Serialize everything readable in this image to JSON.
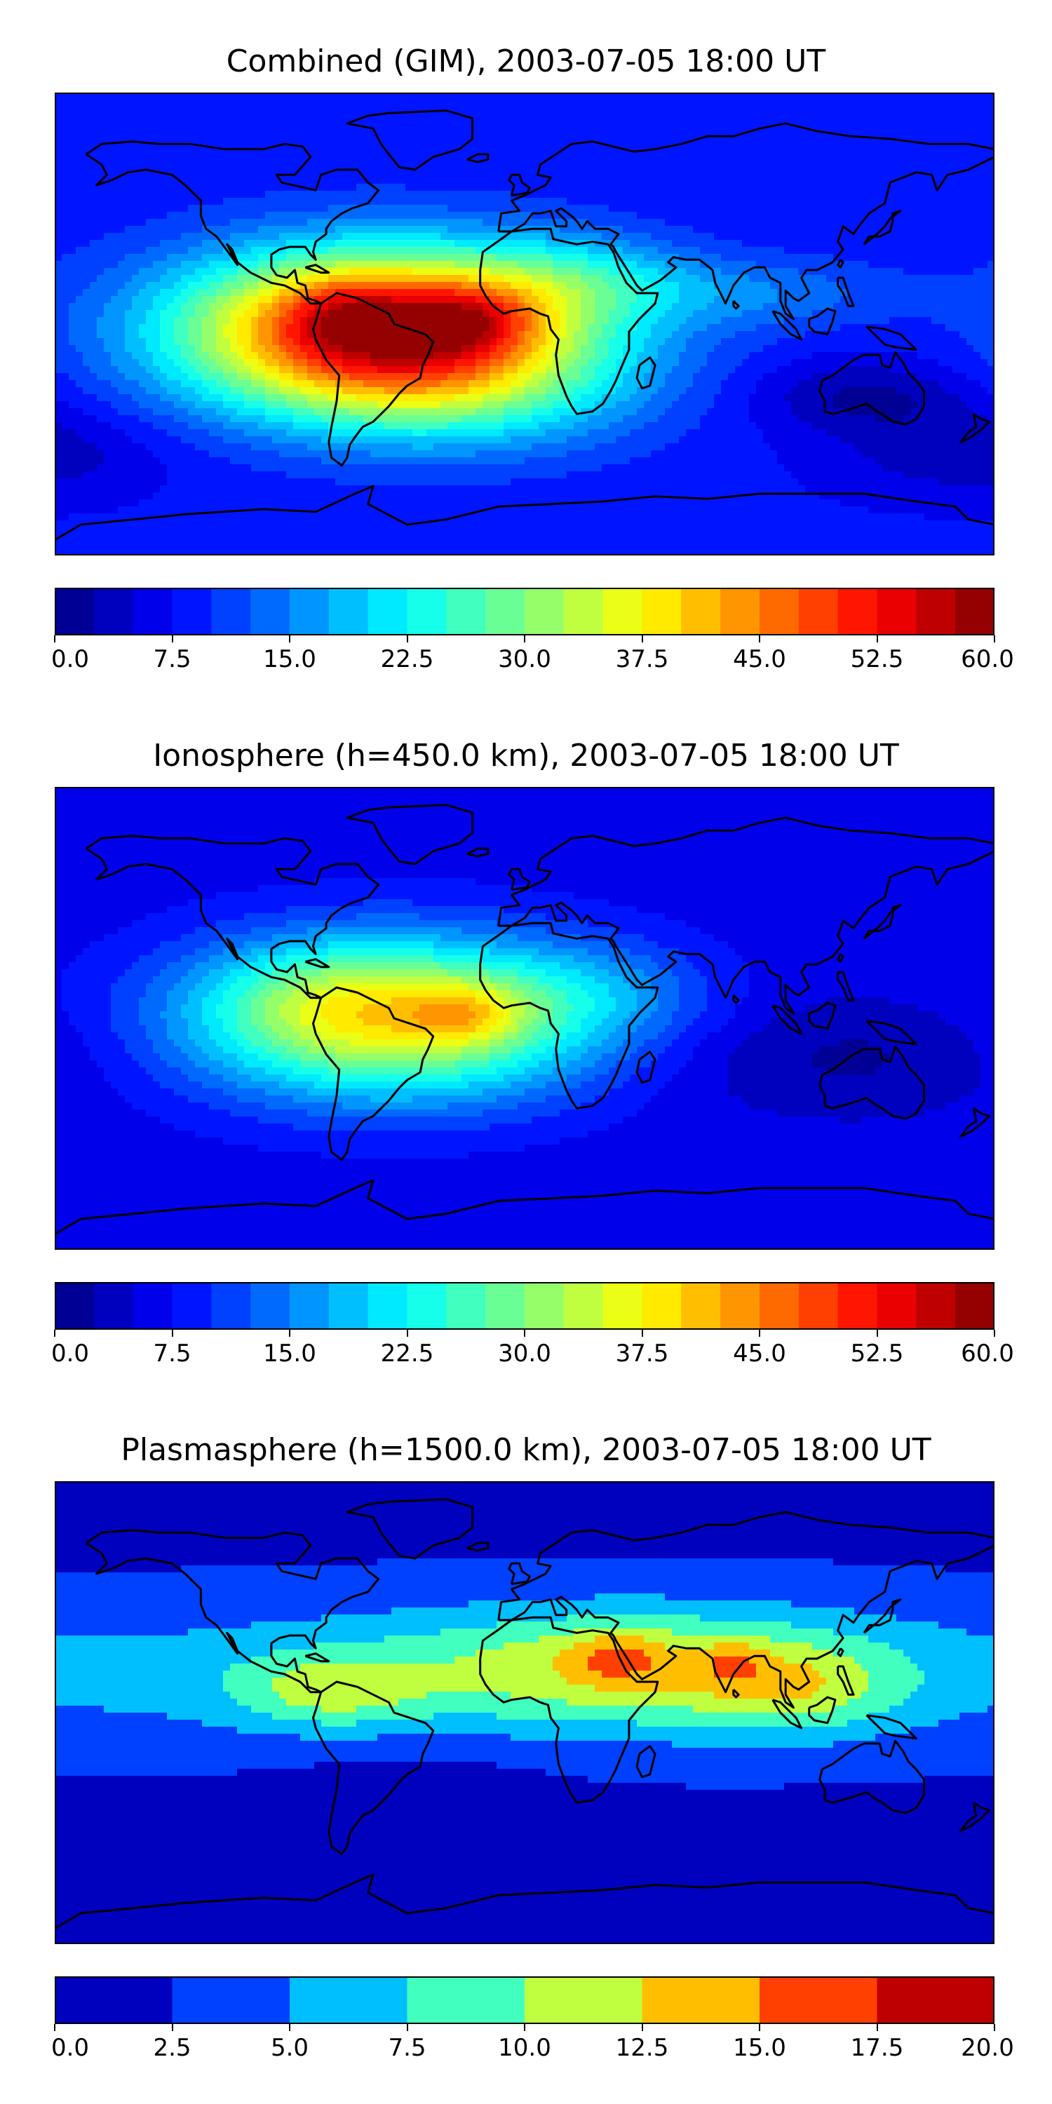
{
  "panels": [
    {
      "title": "Combined (GIM), 2003-07-05 18:00 UT",
      "colorbar": {
        "min": 0,
        "max": 60,
        "levels": 24,
        "ticks": [
          "0.0",
          "7.5",
          "15.0",
          "22.5",
          "30.0",
          "37.5",
          "45.0",
          "52.5",
          "60.0"
        ]
      },
      "field": {
        "background": 8,
        "blobs": [
          {
            "lon": -55,
            "lat": -2,
            "value": 47,
            "sx": 55,
            "sy": 22
          },
          {
            "lon": -22,
            "lat": 2,
            "value": 10,
            "sx": 18,
            "sy": 9
          },
          {
            "lon": -70,
            "lat": 5,
            "value": 6,
            "sx": 15,
            "sy": 10
          },
          {
            "lon": -25,
            "lat": -25,
            "value": 10,
            "sx": 50,
            "sy": 18
          },
          {
            "lon": 20,
            "lat": 18,
            "value": 8,
            "sx": 30,
            "sy": 12
          },
          {
            "lon": 90,
            "lat": 12,
            "value": 6,
            "sx": 40,
            "sy": 10
          },
          {
            "lon": 130,
            "lat": -28,
            "value": -6,
            "sx": 30,
            "sy": 10
          },
          {
            "lon": 170,
            "lat": -50,
            "value": -5,
            "sx": 35,
            "sy": 12
          }
        ]
      }
    },
    {
      "title": "Ionosphere  (h=450.0 km), 2003-07-05 18:00 UT",
      "colorbar": {
        "min": 0,
        "max": 60,
        "levels": 24,
        "ticks": [
          "0.0",
          "7.5",
          "15.0",
          "22.5",
          "30.0",
          "37.5",
          "45.0",
          "52.5",
          "60.0"
        ]
      },
      "field": {
        "background": 6,
        "blobs": [
          {
            "lon": -50,
            "lat": 0,
            "value": 32,
            "sx": 55,
            "sy": 22
          },
          {
            "lon": -22,
            "lat": 2,
            "value": 8,
            "sx": 15,
            "sy": 8
          },
          {
            "lon": -80,
            "lat": 10,
            "value": 4,
            "sx": 30,
            "sy": 14
          },
          {
            "lon": 30,
            "lat": 10,
            "value": 5,
            "sx": 30,
            "sy": 14
          },
          {
            "lon": 120,
            "lat": -15,
            "value": -4,
            "sx": 50,
            "sy": 15
          }
        ]
      }
    },
    {
      "title": "Plasmasphere (h=1500.0 km), 2003-07-05 18:00 UT",
      "colorbar": {
        "min": 0,
        "max": 20,
        "levels": 8,
        "ticks": [
          "0.0",
          "2.5",
          "5.0",
          "7.5",
          "10.0",
          "12.5",
          "15.0",
          "17.5",
          "20.0"
        ]
      },
      "field": {
        "background": 2,
        "blobs": [
          {
            "lon": 0,
            "lat": 15,
            "value": 5,
            "sx": 200,
            "sy": 20
          },
          {
            "lon": 45,
            "lat": 18,
            "value": 6,
            "sx": 60,
            "sy": 16
          },
          {
            "lon": 35,
            "lat": 22,
            "value": 4,
            "sx": 12,
            "sy": 7
          },
          {
            "lon": 80,
            "lat": 20,
            "value": 3,
            "sx": 8,
            "sy": 6
          },
          {
            "lon": 105,
            "lat": 8,
            "value": 4,
            "sx": 25,
            "sy": 12
          },
          {
            "lon": -75,
            "lat": 8,
            "value": 5,
            "sx": 25,
            "sy": 10
          },
          {
            "lon": -40,
            "lat": -22,
            "value": -1,
            "sx": 40,
            "sy": 10
          }
        ]
      }
    }
  ]
}
